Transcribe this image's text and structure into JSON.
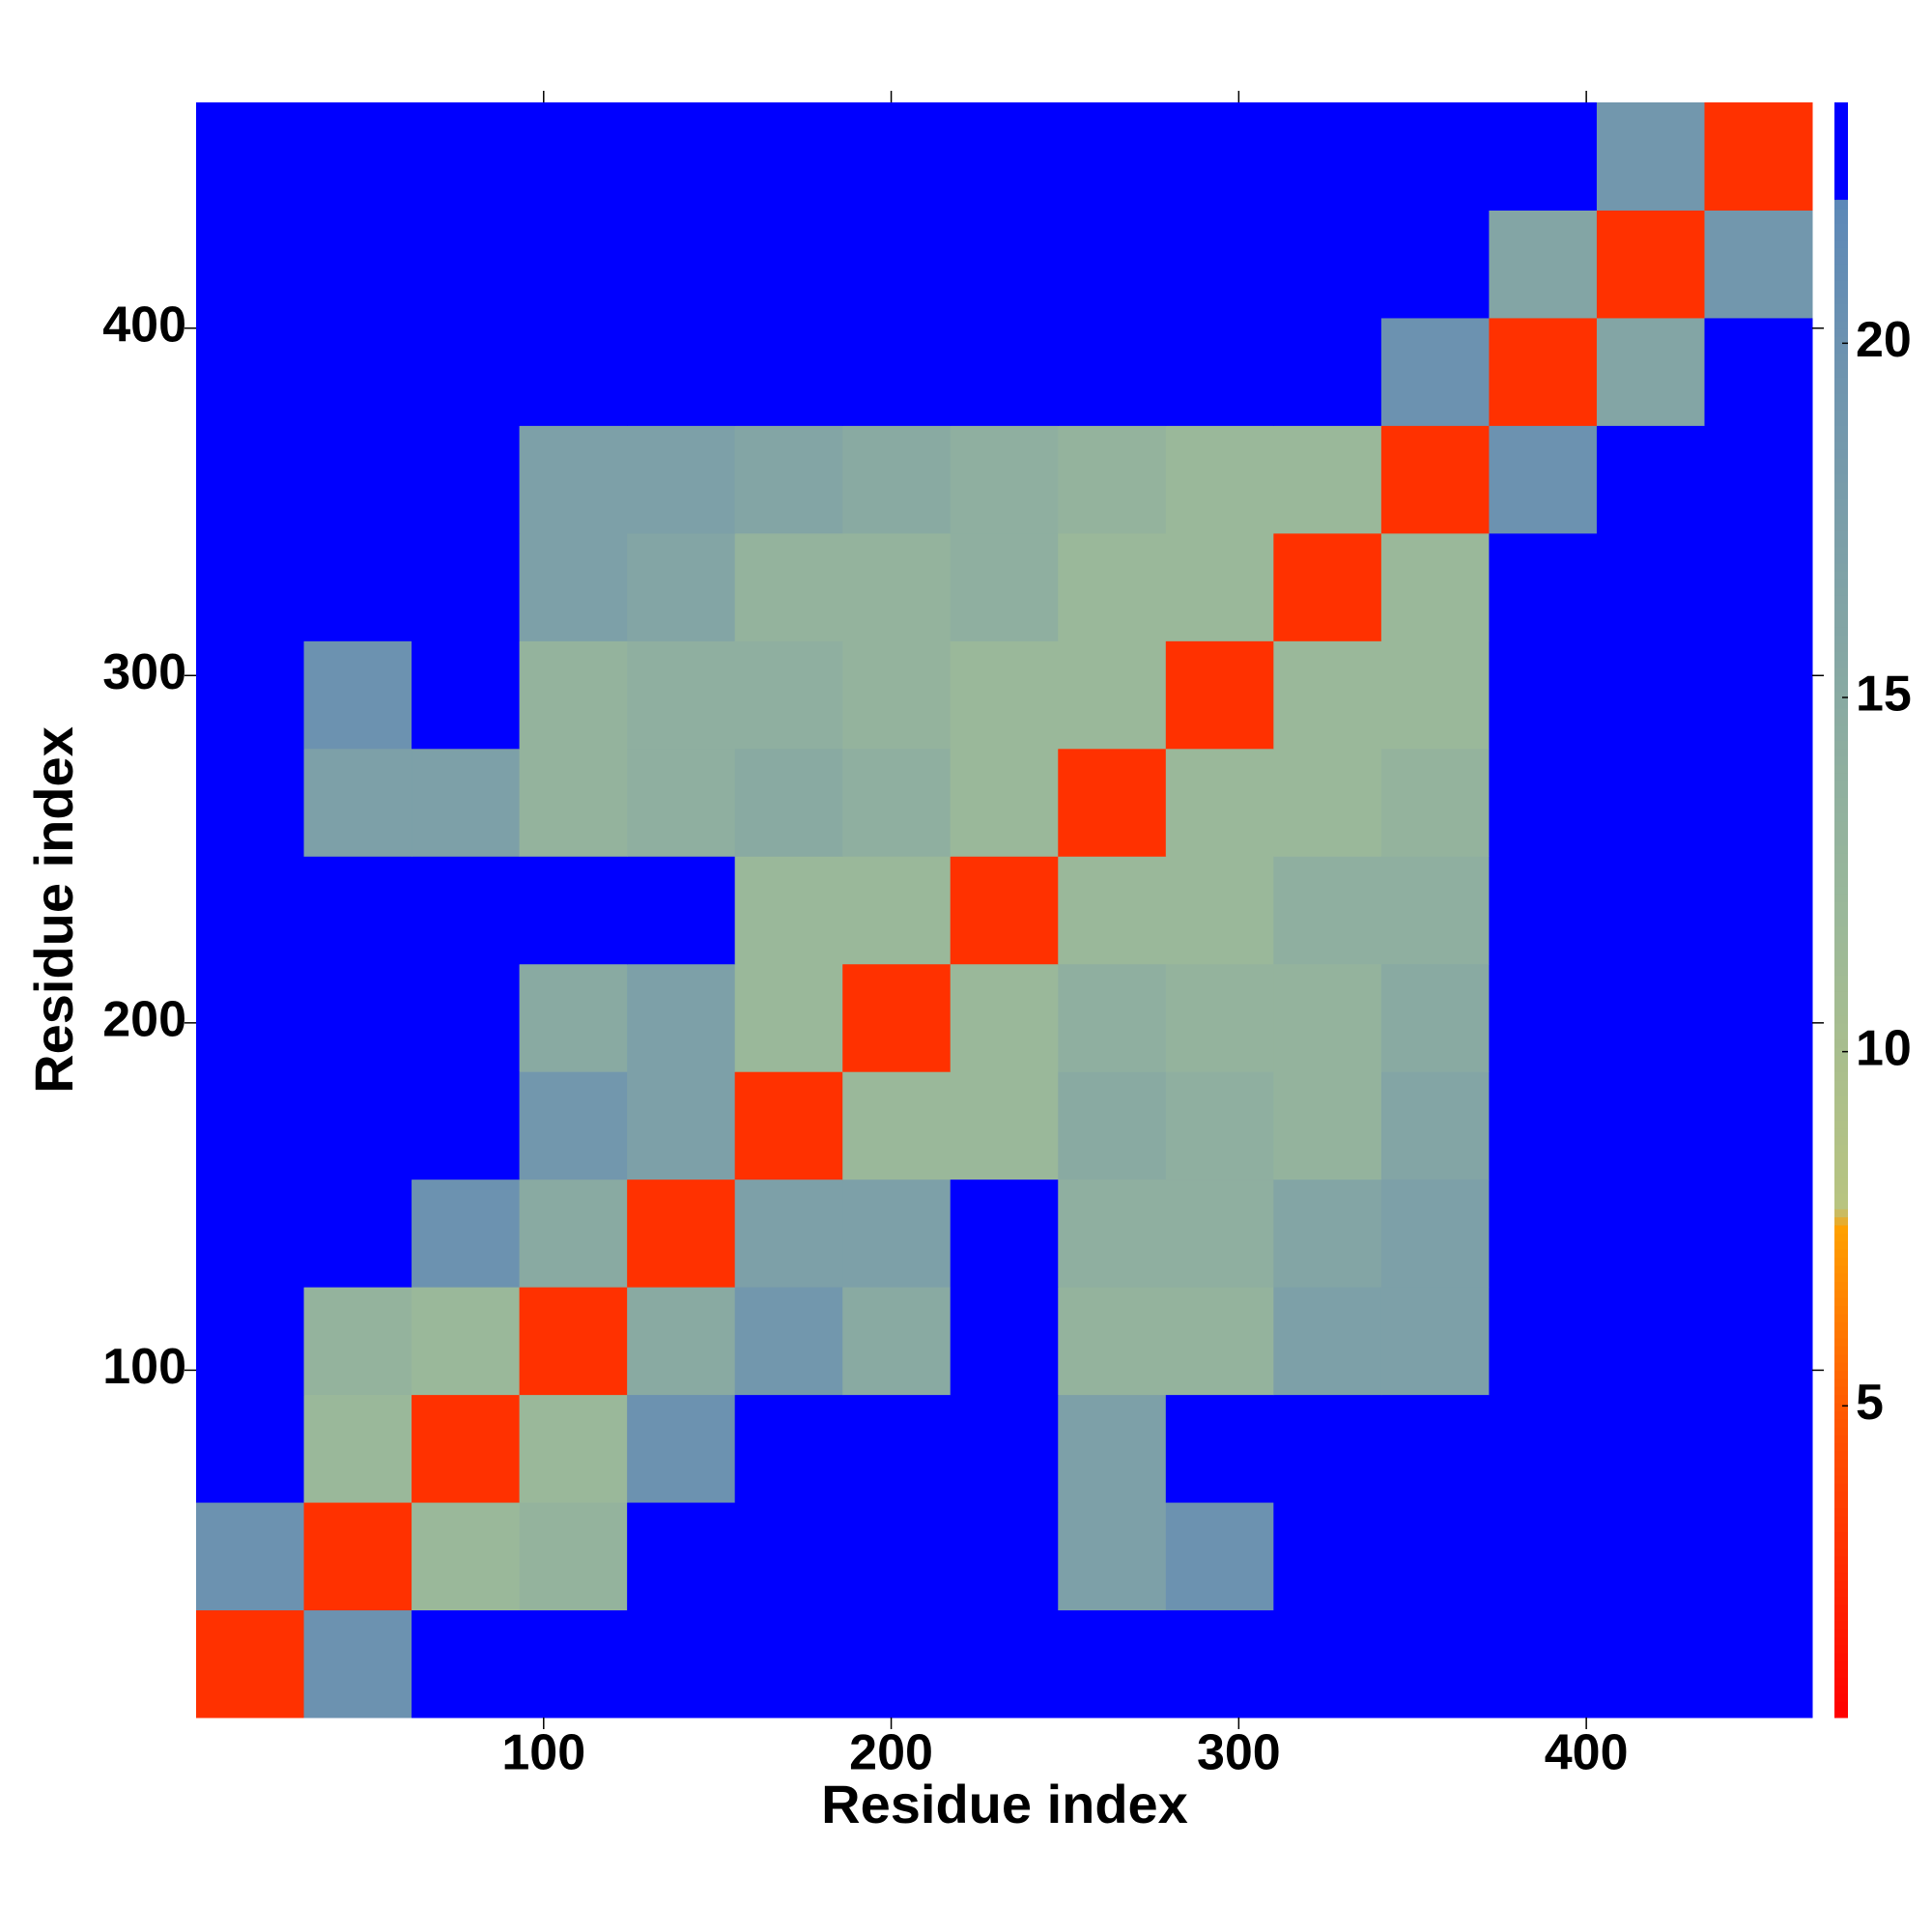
{
  "chart_data": {
    "type": "heatmap",
    "x_label": "Residue index",
    "y_label": "Residue index",
    "xlim": [
      0,
      465
    ],
    "ylim": [
      0,
      465
    ],
    "xticks": [
      100,
      200,
      300,
      400
    ],
    "yticks": [
      100,
      200,
      300,
      400
    ],
    "xbins": [
      0,
      31,
      62,
      93,
      124,
      155,
      186,
      217,
      248,
      279,
      310,
      341,
      372,
      403,
      434,
      465
    ],
    "ybins": [
      0,
      31,
      62,
      93,
      124,
      155,
      186,
      217,
      248,
      279,
      310,
      341,
      372,
      403,
      434,
      465
    ],
    "z": [
      [
        3,
        20,
        23,
        23,
        23,
        23,
        23,
        23,
        23,
        23,
        23,
        23,
        23,
        23,
        23
      ],
      [
        20,
        3,
        12,
        13,
        23,
        23,
        23,
        23,
        17,
        20,
        23,
        23,
        23,
        23,
        23
      ],
      [
        23,
        12,
        3,
        12,
        20,
        23,
        23,
        23,
        17,
        23,
        23,
        23,
        23,
        23,
        23
      ],
      [
        23,
        13,
        12,
        3,
        15,
        19,
        15,
        23,
        13,
        13,
        17,
        17,
        23,
        23,
        23
      ],
      [
        23,
        23,
        20,
        15,
        3,
        17,
        17,
        23,
        14,
        14,
        16,
        17,
        23,
        23,
        23
      ],
      [
        23,
        23,
        23,
        19,
        17,
        3,
        12,
        12,
        15,
        14,
        13,
        16,
        23,
        23,
        23
      ],
      [
        23,
        23,
        23,
        15,
        17,
        12,
        3,
        12,
        14,
        13,
        13,
        15,
        23,
        23,
        23
      ],
      [
        23,
        23,
        23,
        23,
        23,
        12,
        12,
        3,
        12,
        12,
        14,
        14,
        23,
        23,
        23
      ],
      [
        23,
        17,
        17,
        13,
        14,
        15,
        14,
        12,
        3,
        12,
        12,
        13,
        23,
        23,
        23
      ],
      [
        23,
        20,
        23,
        13,
        14,
        14,
        13,
        12,
        12,
        3,
        12,
        12,
        23,
        23,
        23
      ],
      [
        23,
        23,
        23,
        17,
        16,
        13,
        13,
        14,
        12,
        12,
        3,
        12,
        23,
        23,
        23
      ],
      [
        23,
        23,
        23,
        17,
        17,
        16,
        15,
        14,
        13,
        12,
        12,
        3,
        20,
        23,
        23
      ],
      [
        23,
        23,
        23,
        23,
        23,
        23,
        23,
        23,
        23,
        23,
        23,
        20,
        3,
        16,
        23
      ],
      [
        23,
        23,
        23,
        23,
        23,
        23,
        23,
        23,
        23,
        23,
        23,
        23,
        16,
        3,
        19
      ],
      [
        23,
        23,
        23,
        23,
        23,
        23,
        23,
        23,
        23,
        23,
        23,
        23,
        23,
        19,
        3
      ]
    ],
    "colorbar": {
      "lim": [
        0.6,
        23.4
      ],
      "ticks": [
        5,
        10,
        15,
        20
      ]
    },
    "colorscale": [
      [
        0.6,
        "#ff0000"
      ],
      [
        5,
        "#ff5a00"
      ],
      [
        7.5,
        "#ffa000"
      ],
      [
        7.8,
        "#b8c480"
      ],
      [
        12,
        "#9ab89a"
      ],
      [
        20,
        "#6c92b0"
      ],
      [
        22,
        "#5c88b8"
      ],
      [
        22.01,
        "#0000ff"
      ],
      [
        23.4,
        "#0000ff"
      ]
    ]
  }
}
